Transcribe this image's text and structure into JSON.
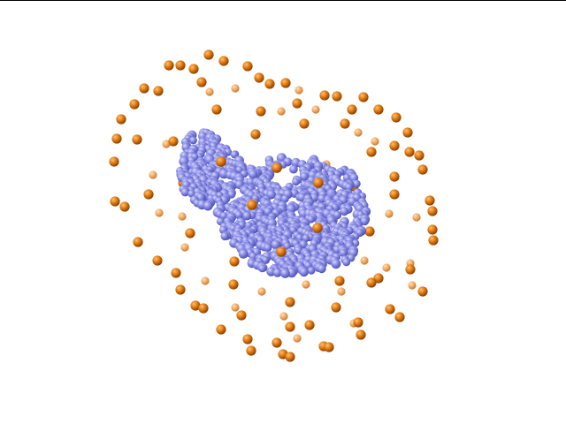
{
  "colors": {
    "background": "#ffffff",
    "frame": "#000000",
    "protein_atom": "#8c8fe6",
    "protein_atom_dark": "#4b4fb4",
    "protein_atom_light": "#c9cbf7",
    "shell_bead": "#e07a10",
    "shell_bead_dark": "#8a3e00",
    "shell_bead_light": "#ffc070",
    "shell_bead_far": "#f2a860"
  },
  "icons": {
    "scene": "molecular-structure-render",
    "protein": "protein-atom-cluster",
    "shell": "dummy-atom-shell"
  }
}
